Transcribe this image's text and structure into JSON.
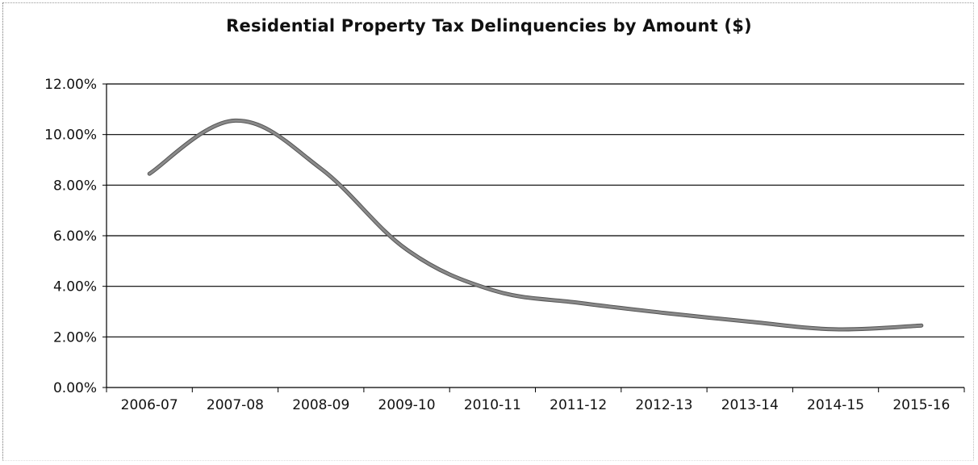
{
  "chart_data": {
    "type": "line",
    "title": "Residential Property Tax Delinquencies by Amount ($)",
    "xlabel": "",
    "ylabel": "",
    "categories": [
      "2006-07",
      "2007-08",
      "2008-09",
      "2009-10",
      "2010-11",
      "2011-12",
      "2012-13",
      "2013-14",
      "2014-15",
      "2015-16"
    ],
    "series": [
      {
        "values": [
          8.45,
          10.55,
          8.65,
          5.45,
          3.85,
          3.35,
          2.95,
          2.6,
          2.3,
          2.45
        ]
      }
    ],
    "ylim": [
      0,
      12
    ],
    "yticks": [
      0,
      2,
      4,
      6,
      8,
      10,
      12
    ],
    "ytick_labels": [
      "0.00%",
      "2.00%",
      "4.00%",
      "6.00%",
      "8.00%",
      "10.00%",
      "12.00%"
    ],
    "grid": true,
    "legend": "none",
    "line_color": "#8a8a8a",
    "grid_color": "#000000"
  }
}
